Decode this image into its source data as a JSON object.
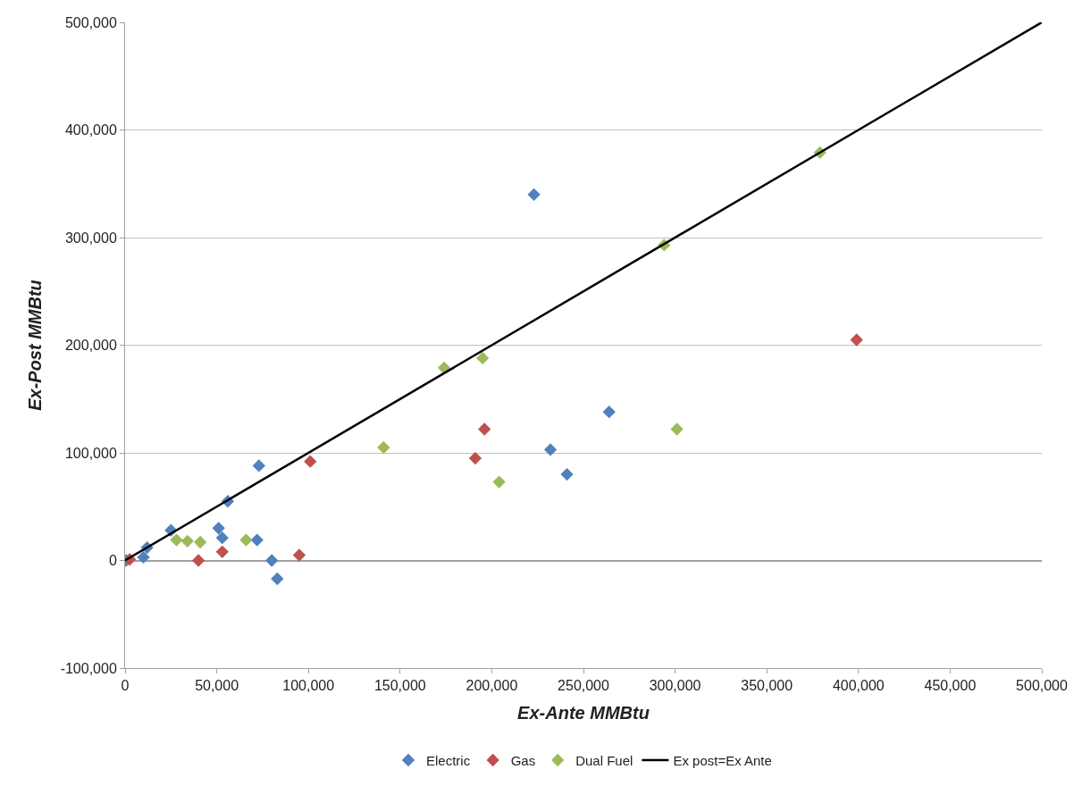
{
  "chart_data": {
    "type": "scatter",
    "xlabel": "Ex-Ante MMBtu",
    "ylabel": "Ex-Post MMBtu",
    "xlim": [
      0,
      500000
    ],
    "xticks": [
      {
        "value": 0,
        "label": "0"
      },
      {
        "value": 50000,
        "label": "50,000"
      },
      {
        "value": 100000,
        "label": "100,000"
      },
      {
        "value": 150000,
        "label": "150,000"
      },
      {
        "value": 200000,
        "label": "200,000"
      },
      {
        "value": 250000,
        "label": "250,000"
      },
      {
        "value": 300000,
        "label": "300,000"
      },
      {
        "value": 350000,
        "label": "350,000"
      },
      {
        "value": 400000,
        "label": "400,000"
      },
      {
        "value": 450000,
        "label": "450,000"
      },
      {
        "value": 500000,
        "label": "500,000"
      }
    ],
    "ylim": [
      -100000,
      500000
    ],
    "yticks": [
      {
        "value": -100000,
        "label": "-100,000"
      },
      {
        "value": 0,
        "label": "0"
      },
      {
        "value": 100000,
        "label": "100,000"
      },
      {
        "value": 200000,
        "label": "200,000"
      },
      {
        "value": 300000,
        "label": "300,000"
      },
      {
        "value": 400000,
        "label": "400,000"
      },
      {
        "value": 500000,
        "label": "500,000"
      }
    ],
    "grid": "y",
    "legend": "bottom",
    "marker": "diamond",
    "series": [
      {
        "name": "Electric",
        "color": "#4f81bd",
        "x": [
          500,
          5000,
          7000,
          8000,
          9000,
          10000,
          12000,
          25000,
          51000,
          53000,
          56000,
          72000,
          73000,
          80000,
          83000,
          223000,
          232000,
          241000,
          264000
        ],
        "values": [
          0,
          null,
          null,
          null,
          null,
          3000,
          12000,
          28000,
          30000,
          21000,
          55000,
          19000,
          88000,
          0,
          -17000,
          340000,
          103000,
          80000,
          138000
        ]
      },
      {
        "name": "Gas",
        "color": "#c0504d",
        "x": [
          2500,
          40000,
          53000,
          95000,
          101000,
          191000,
          196000,
          399000
        ],
        "values": [
          1000,
          0,
          8000,
          5000,
          92000,
          95000,
          122000,
          205000
        ]
      },
      {
        "name": "Dual Fuel",
        "color": "#9bbb59",
        "x": [
          28000,
          34000,
          41000,
          66000,
          141000,
          174000,
          195000,
          204000,
          294000,
          301000,
          379000
        ],
        "values": [
          19000,
          18000,
          17000,
          19000,
          105000,
          179000,
          188000,
          73000,
          293000,
          122000,
          379000
        ]
      },
      {
        "name": "Ex post=Ex Ante",
        "type": "line",
        "marker": "none",
        "color": "#000000",
        "x": [
          0,
          500000
        ],
        "values": [
          0,
          500000
        ]
      }
    ]
  }
}
